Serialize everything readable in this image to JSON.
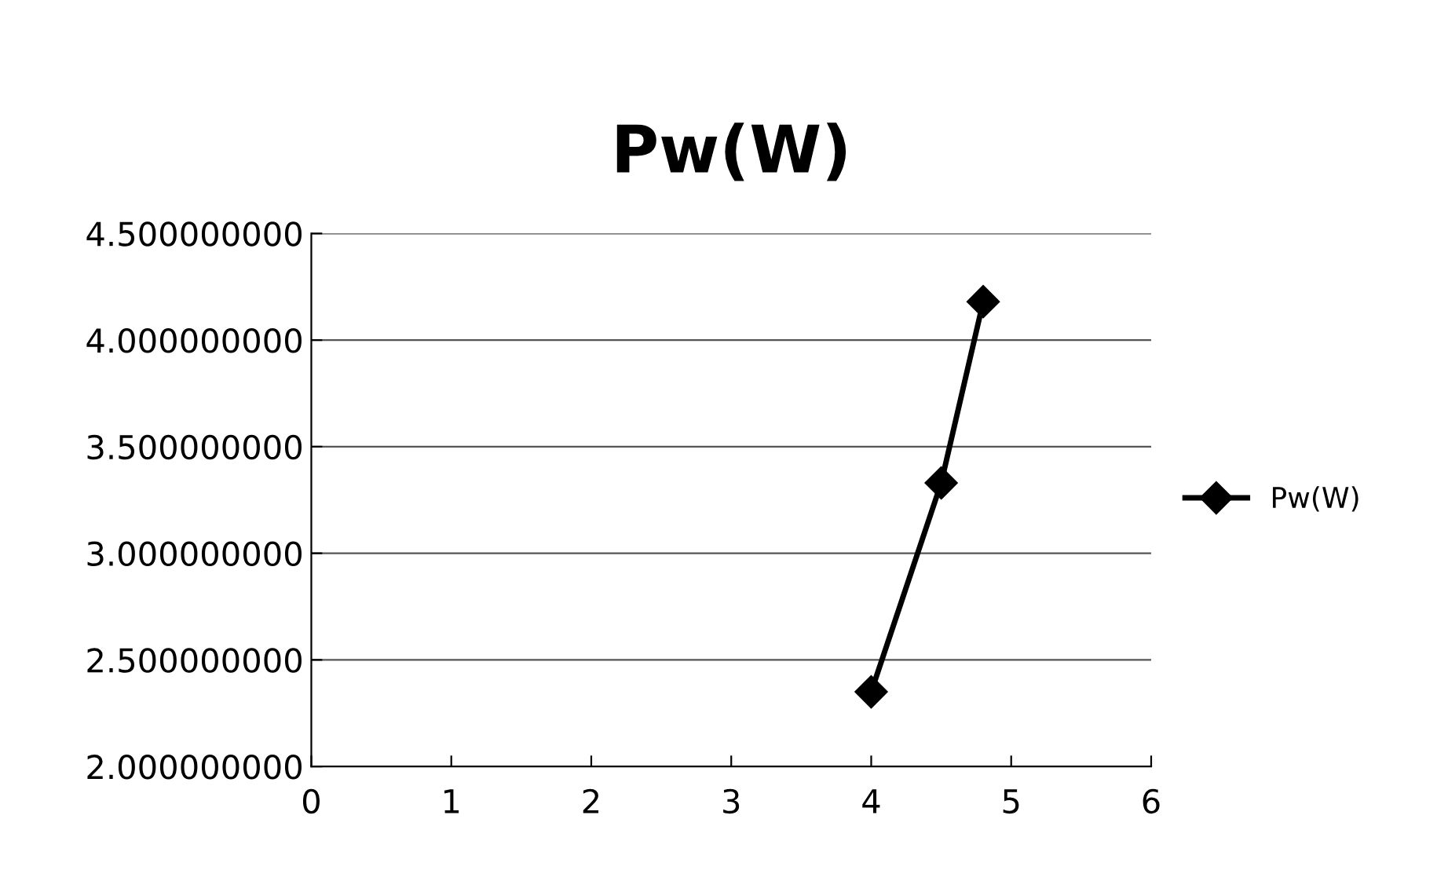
{
  "chart_data": {
    "type": "line",
    "title": "Pw(W)",
    "x": [
      4.0,
      4.5,
      4.8
    ],
    "series": [
      {
        "name": "Pw(W)",
        "color": "#000000",
        "values": [
          2.35,
          3.33,
          4.18
        ]
      }
    ],
    "xlim": [
      0,
      6
    ],
    "xticks": [
      0,
      1,
      2,
      3,
      4,
      5,
      6
    ],
    "ylim": [
      2.0,
      4.5
    ],
    "yticks": [
      {
        "value": 2.0,
        "label": "2.000000000"
      },
      {
        "value": 2.5,
        "label": "2.500000000"
      },
      {
        "value": 3.0,
        "label": "3.000000000"
      },
      {
        "value": 3.5,
        "label": "3.500000000"
      },
      {
        "value": 4.0,
        "label": "4.000000000"
      },
      {
        "value": 4.5,
        "label": "4.500000000"
      }
    ],
    "grid": "y",
    "legend": "right",
    "marker": "diamond",
    "line_style": "solid"
  }
}
